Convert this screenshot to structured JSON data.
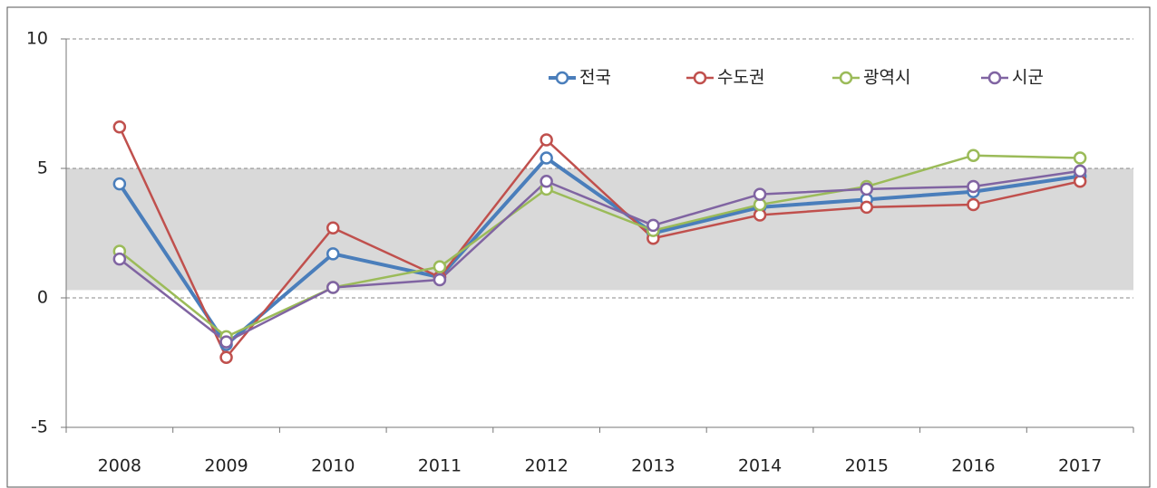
{
  "chart_data": {
    "type": "line",
    "categories": [
      "2008",
      "2009",
      "2010",
      "2011",
      "2012",
      "2013",
      "2014",
      "2015",
      "2016",
      "2017"
    ],
    "series": [
      {
        "name": "전국",
        "color": "#4a7ebb",
        "values": [
          4.4,
          -1.8,
          1.7,
          0.8,
          5.4,
          2.5,
          3.5,
          3.8,
          4.1,
          4.7
        ]
      },
      {
        "name": "수도권",
        "color": "#c0504d",
        "values": [
          6.6,
          -2.3,
          2.7,
          0.8,
          6.1,
          2.3,
          3.2,
          3.5,
          3.6,
          4.5
        ]
      },
      {
        "name": "광역시",
        "color": "#9bbb59",
        "values": [
          1.8,
          -1.5,
          0.4,
          1.2,
          4.2,
          2.6,
          3.6,
          4.3,
          5.5,
          5.4
        ]
      },
      {
        "name": "시군",
        "color": "#8064a2",
        "values": [
          1.5,
          -1.7,
          0.4,
          0.7,
          4.5,
          2.8,
          4.0,
          4.2,
          4.3,
          4.9
        ]
      }
    ],
    "ylim": [
      -5,
      10
    ],
    "yticks": [
      -5,
      0,
      5,
      10
    ],
    "grid": true,
    "shaded_range": [
      0.3,
      5
    ],
    "legend": "top-right"
  }
}
